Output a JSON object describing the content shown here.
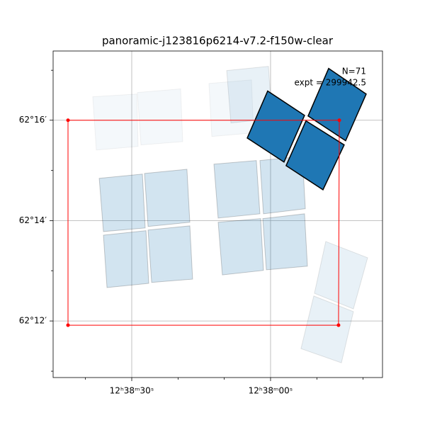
{
  "chart_data": {
    "type": "footprint",
    "title": "panoramic-j123816p6214-v7.2-f150w-clear",
    "annotations": [
      "N=71",
      "expt = 299942.5"
    ],
    "xlim": [
      189.6958,
      189.3992
    ],
    "ylim": [
      62.1812,
      62.2897
    ],
    "xticks": [
      {
        "value": 189.625,
        "label": "12ʰ38ᵐ30ˢ"
      },
      {
        "value": 189.5,
        "label": "12ʰ38ᵐ00ˢ"
      }
    ],
    "yticks": [
      {
        "value": 62.2667,
        "label": "62°16′"
      },
      {
        "value": 62.2333,
        "label": "62°14′"
      },
      {
        "value": 62.2,
        "label": "62°12′"
      }
    ],
    "xminorticks": [
      189.6667,
      189.5833,
      189.5417,
      189.4583,
      189.4167
    ],
    "yminorticks": [
      62.2833,
      62.25,
      62.2167,
      62.1833
    ],
    "grid": true,
    "series": [
      {
        "color": "#1f77b4",
        "alpha": 0.05,
        "edgecolor": "#000000",
        "polygons": [
          {
            "ra": [
              189.6601,
              189.6205,
              189.6193,
              189.6569
            ],
            "dec": [
              62.2745,
              62.2754,
              62.258,
              62.2568
            ]
          },
          {
            "ra": [
              189.6199,
              189.581,
              189.5791,
              189.6167
            ],
            "dec": [
              62.2759,
              62.2771,
              62.2596,
              62.2585
            ]
          },
          {
            "ra": [
              189.5555,
              189.5172,
              189.5153,
              189.5529
            ],
            "dec": [
              62.2789,
              62.2801,
              62.2625,
              62.2613
            ]
          }
        ]
      },
      {
        "color": "#1f77b4",
        "alpha": 0.1,
        "edgecolor": "#000000",
        "polygons": [
          {
            "ra": [
              189.5395,
              189.5019,
              189.4987,
              189.5357
            ],
            "dec": [
              62.2832,
              62.2846,
              62.2672,
              62.2658
            ]
          },
          {
            "ra": [
              189.4503,
              189.4126,
              189.4254,
              189.4605
            ],
            "dec": [
              62.2264,
              62.221,
              62.204,
              62.2092
            ]
          },
          {
            "ra": [
              189.4611,
              189.4254,
              189.4362,
              189.4726
            ],
            "dec": [
              62.2083,
              62.2031,
              62.1861,
              62.1908
            ]
          }
        ]
      },
      {
        "color": "#1f77b4",
        "alpha": 0.2,
        "edgecolor": "#000000",
        "polygons": [
          {
            "ra": [
              189.6543,
              189.6154,
              189.6129,
              189.6505
            ],
            "dec": [
              62.2474,
              62.2488,
              62.2309,
              62.2297
            ]
          },
          {
            "ra": [
              189.6135,
              189.5753,
              189.5727,
              189.6103
            ],
            "dec": [
              62.249,
              62.2504,
              62.2328,
              62.2314
            ]
          },
          {
            "ra": [
              189.6505,
              189.6122,
              189.6097,
              189.6473
            ],
            "dec": [
              62.2285,
              62.23,
              62.2125,
              62.2111
            ]
          },
          {
            "ra": [
              189.6103,
              189.5727,
              189.5702,
              189.6071
            ],
            "dec": [
              62.2302,
              62.2316,
              62.2139,
              62.2128
            ]
          },
          {
            "ra": [
              189.551,
              189.5128,
              189.5096,
              189.5472
            ],
            "dec": [
              62.2521,
              62.2533,
              62.2356,
              62.2342
            ]
          },
          {
            "ra": [
              189.5096,
              189.4713,
              189.4687,
              189.5064
            ],
            "dec": [
              62.2533,
              62.2547,
              62.2373,
              62.2356
            ]
          },
          {
            "ra": [
              189.5472,
              189.5089,
              189.5064,
              189.5434
            ],
            "dec": [
              62.2328,
              62.234,
              62.2168,
              62.2153
            ]
          },
          {
            "ra": [
              189.507,
              189.4694,
              189.4668,
              189.5038
            ],
            "dec": [
              62.234,
              62.2356,
              62.2182,
              62.217
            ]
          }
        ]
      },
      {
        "color": "#1f77b4",
        "alpha": 1,
        "edgecolor": "#000000",
        "polygons": [
          {
            "ra": [
              189.5026,
              189.4694,
              189.4879,
              189.521
            ],
            "dec": [
              62.2764,
              62.2683,
              62.2528,
              62.2608
            ]
          },
          {
            "ra": [
              189.4477,
              189.4139,
              189.4324,
              189.4662
            ],
            "dec": [
              62.2839,
              62.2754,
              62.2599,
              62.2681
            ]
          },
          {
            "ra": [
              189.4681,
              189.4337,
              189.4528,
              189.486
            ],
            "dec": [
              62.2665,
              62.2585,
              62.2436,
              62.2516
            ]
          }
        ]
      }
    ],
    "outline": {
      "color": "#ff0000",
      "ra": [
        189.6824,
        189.4381,
        189.4388,
        189.6824
      ],
      "dec": [
        62.2667,
        62.2667,
        62.1986,
        62.1986
      ]
    }
  }
}
